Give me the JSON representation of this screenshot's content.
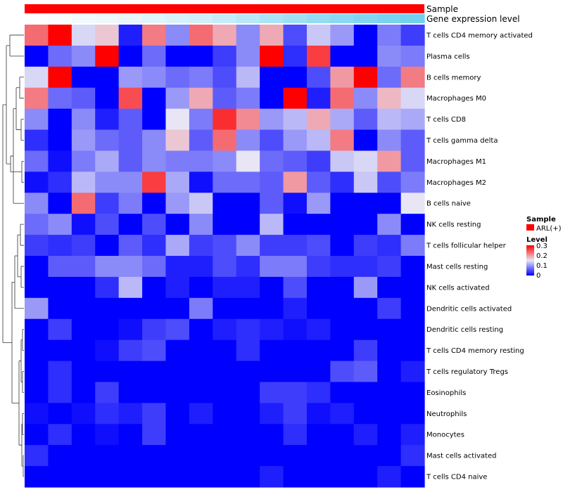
{
  "chart_data": {
    "type": "heatmap",
    "title": "",
    "annotations": [
      {
        "name": "Sample",
        "color": "#ff0000"
      },
      {
        "name": "Gene expression level",
        "low_color": "#ffffff",
        "high_color": "#66ccee"
      }
    ],
    "rows": [
      "T cells CD4 memory activated",
      "Plasma cells",
      "B cells memory",
      "Macrophages M0",
      "T cells CD8",
      "T cells gamma delta",
      "Macrophages M1",
      "Macrophages M2",
      "B cells naive",
      "NK cells resting",
      "T cells follicular helper",
      "Mast cells resting",
      "NK cells activated",
      "Dendritic cells activated",
      "Dendritic cells resting",
      "T cells CD4 memory resting",
      "T cells regulatory  Tregs",
      "Eosinophils",
      "Neutrophils",
      "Monocytes",
      "Mast cells activated",
      "T cells CD4 naive"
    ],
    "values": [
      [
        0.23,
        0.3,
        0.14,
        0.17,
        0.02,
        0.22,
        0.09,
        0.23,
        0.19,
        0.09,
        0.19,
        0.05,
        0.13,
        0.1,
        0.0,
        0.08,
        0.04
      ],
      [
        0.0,
        0.07,
        0.09,
        0.3,
        0.0,
        0.07,
        0.0,
        0.0,
        0.04,
        0.09,
        0.3,
        0.03,
        0.26,
        0.0,
        0.0,
        0.09,
        0.08
      ],
      [
        0.14,
        0.3,
        0.0,
        0.0,
        0.1,
        0.09,
        0.07,
        0.08,
        0.05,
        0.12,
        0.0,
        0.0,
        0.05,
        0.2,
        0.3,
        0.07,
        0.22
      ],
      [
        0.22,
        0.07,
        0.06,
        0.0,
        0.25,
        0.0,
        0.1,
        0.19,
        0.06,
        0.08,
        0.0,
        0.3,
        0.02,
        0.23,
        0.09,
        0.18,
        0.14
      ],
      [
        0.09,
        0.0,
        0.09,
        0.02,
        0.06,
        0.0,
        0.15,
        0.08,
        0.27,
        0.21,
        0.1,
        0.12,
        0.19,
        0.11,
        0.06,
        0.12,
        0.11
      ],
      [
        0.03,
        0.0,
        0.1,
        0.07,
        0.06,
        0.09,
        0.17,
        0.06,
        0.23,
        0.09,
        0.05,
        0.1,
        0.12,
        0.22,
        0.0,
        0.09,
        0.06
      ],
      [
        0.07,
        0.01,
        0.08,
        0.11,
        0.06,
        0.09,
        0.08,
        0.08,
        0.09,
        0.15,
        0.07,
        0.06,
        0.04,
        0.13,
        0.14,
        0.2,
        0.06
      ],
      [
        0.01,
        0.03,
        0.12,
        0.09,
        0.09,
        0.26,
        0.11,
        0.01,
        0.07,
        0.07,
        0.06,
        0.2,
        0.06,
        0.03,
        0.13,
        0.05,
        0.08
      ],
      [
        0.09,
        0.0,
        0.23,
        0.04,
        0.08,
        0.0,
        0.1,
        0.13,
        0.0,
        0.0,
        0.06,
        0.01,
        0.1,
        0.0,
        0.0,
        0.0,
        0.15
      ],
      [
        0.07,
        0.09,
        0.01,
        0.05,
        0.0,
        0.05,
        0.0,
        0.09,
        0.0,
        0.0,
        0.12,
        0.0,
        0.0,
        0.0,
        0.0,
        0.09,
        0.0
      ],
      [
        0.04,
        0.03,
        0.04,
        0.0,
        0.06,
        0.03,
        0.11,
        0.04,
        0.05,
        0.09,
        0.04,
        0.04,
        0.05,
        0.0,
        0.04,
        0.03,
        0.08
      ],
      [
        0.0,
        0.06,
        0.06,
        0.09,
        0.09,
        0.07,
        0.02,
        0.02,
        0.05,
        0.03,
        0.08,
        0.08,
        0.04,
        0.03,
        0.03,
        0.04,
        0.0
      ],
      [
        0.0,
        0.0,
        0.0,
        0.03,
        0.12,
        0.0,
        0.02,
        0.0,
        0.02,
        0.02,
        0.0,
        0.05,
        0.0,
        0.0,
        0.1,
        0.0,
        0.0
      ],
      [
        0.1,
        0.0,
        0.0,
        0.0,
        0.0,
        0.0,
        0.0,
        0.08,
        0.0,
        0.0,
        0.0,
        0.02,
        0.0,
        0.0,
        0.0,
        0.04,
        0.0
      ],
      [
        0.0,
        0.04,
        0.0,
        0.0,
        0.01,
        0.04,
        0.05,
        0.0,
        0.02,
        0.03,
        0.02,
        0.01,
        0.02,
        0.0,
        0.0,
        0.0,
        0.0
      ],
      [
        0.0,
        0.0,
        0.0,
        0.01,
        0.04,
        0.05,
        0.0,
        0.0,
        0.0,
        0.03,
        0.0,
        0.0,
        0.0,
        0.0,
        0.04,
        0.0,
        0.0
      ],
      [
        0.0,
        0.03,
        0.0,
        0.0,
        0.0,
        0.0,
        0.0,
        0.0,
        0.0,
        0.0,
        0.0,
        0.0,
        0.0,
        0.05,
        0.06,
        0.0,
        0.02
      ],
      [
        0.0,
        0.03,
        0.0,
        0.04,
        0.0,
        0.0,
        0.0,
        0.0,
        0.0,
        0.0,
        0.04,
        0.04,
        0.03,
        0.0,
        0.0,
        0.0,
        0.0
      ],
      [
        0.01,
        0.0,
        0.01,
        0.03,
        0.02,
        0.04,
        0.0,
        0.02,
        0.0,
        0.0,
        0.02,
        0.04,
        0.01,
        0.02,
        0.0,
        0.0,
        0.0
      ],
      [
        0.0,
        0.03,
        0.0,
        0.01,
        0.0,
        0.04,
        0.0,
        0.0,
        0.0,
        0.0,
        0.0,
        0.03,
        0.0,
        0.0,
        0.02,
        0.0,
        0.02
      ],
      [
        0.03,
        0.0,
        0.0,
        0.0,
        0.0,
        0.0,
        0.0,
        0.0,
        0.0,
        0.0,
        0.0,
        0.0,
        0.0,
        0.0,
        0.0,
        0.0,
        0.03
      ],
      [
        0.0,
        0.0,
        0.0,
        0.0,
        0.0,
        0.0,
        0.0,
        0.0,
        0.0,
        0.0,
        0.02,
        0.0,
        0.0,
        0.0,
        0.0,
        0.02,
        0.0
      ]
    ],
    "gene_expression_level": [
      0.0,
      0.04,
      0.09,
      0.12,
      0.16,
      0.21,
      0.26,
      0.3,
      0.38,
      0.46,
      0.54,
      0.62,
      0.7,
      0.76,
      0.82,
      0.88,
      0.92
    ],
    "color_scale": {
      "min": 0,
      "max": 0.3,
      "low": "#0000ff",
      "mid": "#e8e6f5",
      "high": "#ff0000"
    },
    "legend": {
      "sample_title": "Sample",
      "sample_item": "ARL(+)",
      "level_title": "Level",
      "level_ticks": [
        "0.3",
        "0.2",
        "0.1",
        "0"
      ]
    }
  }
}
